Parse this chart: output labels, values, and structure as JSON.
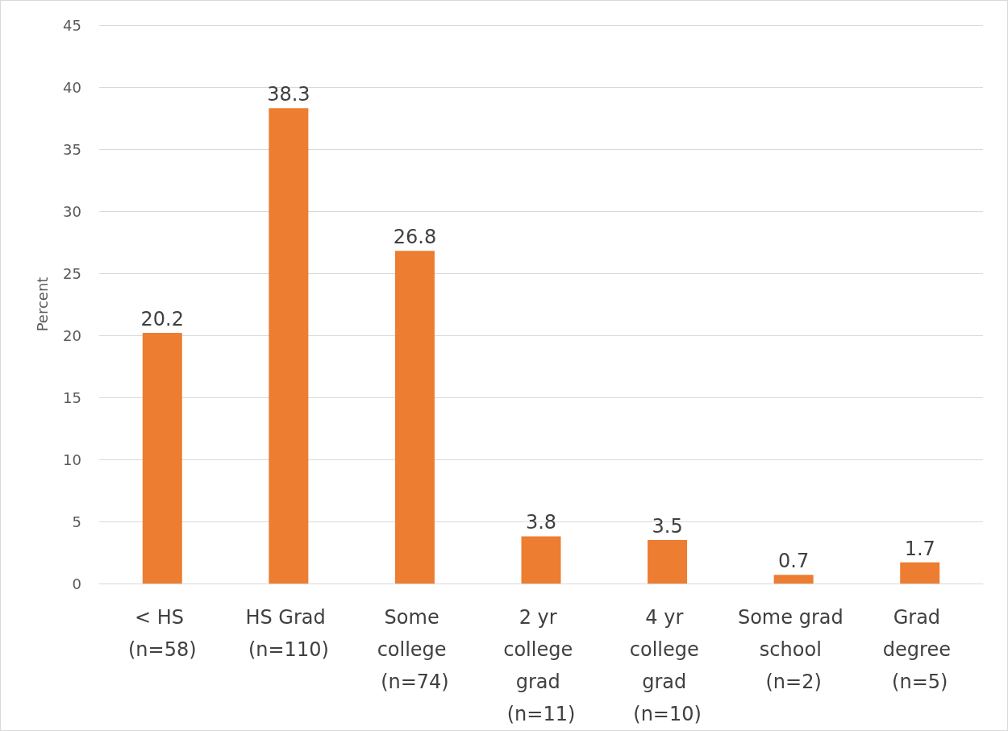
{
  "chart_data": {
    "type": "bar",
    "ylabel": "Percent",
    "categories": [
      "< HS (n=58)",
      "HS Grad (n=110)",
      "Some college (n=74)",
      "2 yr college grad (n=11)",
      "4 yr college grad (n=10)",
      "Some grad school (n=2)",
      "Grad degree (n=5)"
    ],
    "values": [
      20.2,
      38.3,
      26.8,
      3.8,
      3.5,
      0.7,
      1.7
    ],
    "color": "#ed7d31",
    "ylim": [
      0,
      45
    ],
    "yticks": [
      0,
      5,
      10,
      15,
      20,
      25,
      30,
      35,
      40,
      45
    ],
    "grid": "y",
    "data_labels": true
  }
}
